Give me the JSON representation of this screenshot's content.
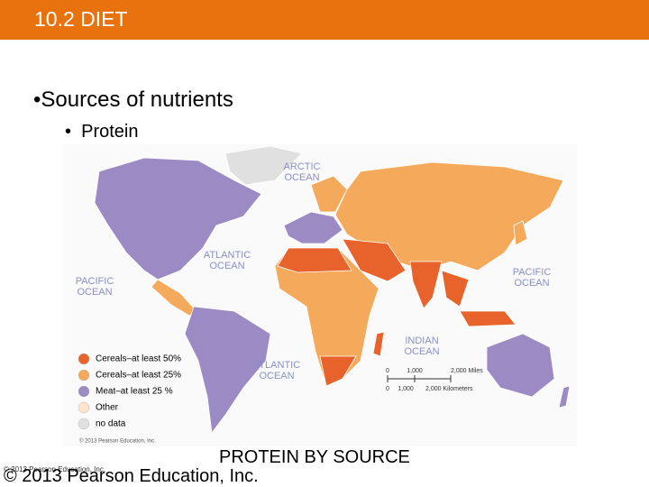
{
  "header": {
    "title": "10.2 DIET"
  },
  "bullets": [
    "Sources of nutrients",
    "Protein"
  ],
  "map": {
    "oceans": [
      {
        "lines": [
          "ARCTIC",
          "OCEAN"
        ]
      },
      {
        "lines": [
          "ATLANTIC",
          "OCEAN"
        ]
      },
      {
        "lines": [
          "PACIFIC",
          "OCEAN"
        ]
      },
      {
        "lines": [
          "PACIFIC",
          "OCEAN"
        ]
      },
      {
        "lines": [
          "INDIAN",
          "OCEAN"
        ]
      },
      {
        "lines": [
          "ATLANTIC",
          "OCEAN"
        ]
      }
    ],
    "legend": [
      {
        "label": "Cereals–at least 50%",
        "color": "#e8622c"
      },
      {
        "label": "Cereals–at least 25%",
        "color": "#f5a95a"
      },
      {
        "label": "Meat–at least 25 %",
        "color": "#9b8ac4"
      },
      {
        "label": "Other",
        "color": "#fce5cc"
      },
      {
        "label": "no data",
        "color": "#e0e0e0"
      }
    ],
    "scale": {
      "miles": [
        "0",
        "1,000",
        "2,000 Miles"
      ],
      "kilometers": [
        "0",
        "1,000",
        "2,000 Kilometers"
      ]
    },
    "credit": "© 2013 Pearson Education, Inc."
  },
  "caption": "PROTEIN BY SOURCE",
  "footer": {
    "small": "© 2013 Pearson Education, Inc.",
    "large": "© 2013 Pearson Education, Inc."
  }
}
